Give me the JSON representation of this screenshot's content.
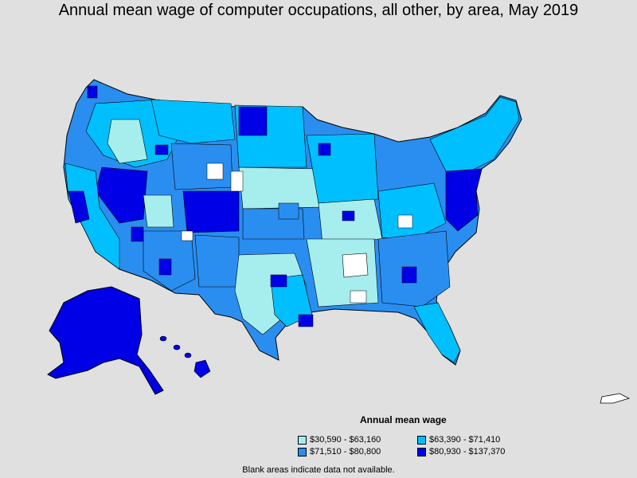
{
  "title": "Annual mean wage of computer occupations, all other, by area, May 2019",
  "legend": {
    "title": "Annual mean wage",
    "items": [
      {
        "label": "$30,590 - $63,160",
        "color": "#a6eeee"
      },
      {
        "label": "$63,390 - $71,410",
        "color": "#00bfff"
      },
      {
        "label": "$71,510 - $80,800",
        "color": "#2a8ef0"
      },
      {
        "label": "$80,930 - $137,370",
        "color": "#0000e6"
      }
    ]
  },
  "footnote": "Blank areas indicate data not available.",
  "colors": {
    "background": "#e0e0e0",
    "blank": "#ffffff",
    "border": "#000000"
  }
}
